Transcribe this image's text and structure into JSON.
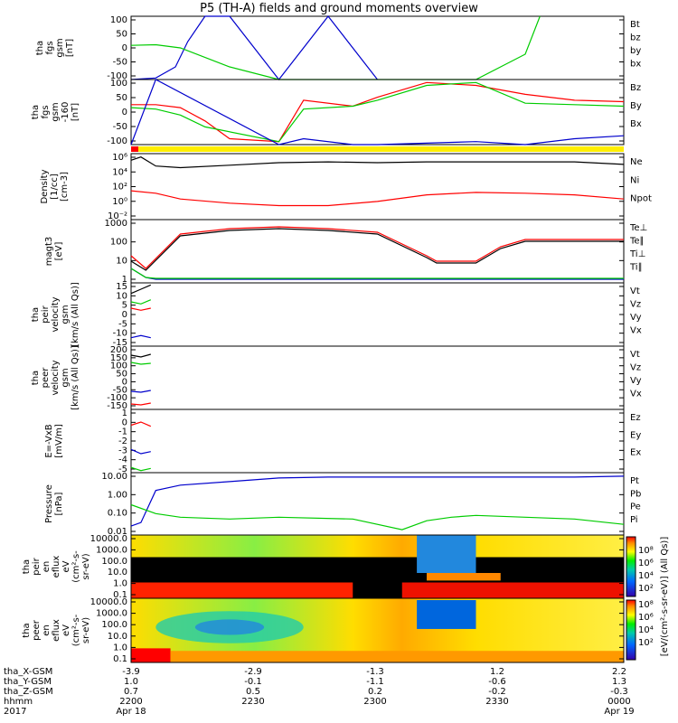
{
  "title": "P5 (TH-A) fields and ground moments overview",
  "colors": {
    "black": "#000000",
    "red": "#ff0000",
    "green": "#00cc00",
    "blue": "#0000cc",
    "yellow": "#ffee00"
  },
  "panels": [
    {
      "id": "fgs",
      "ylabel": [
        "tha",
        "fgs",
        "gsm",
        "[nT]"
      ],
      "ticks": [
        "100",
        "50",
        "0",
        "-50",
        "-100"
      ],
      "legend": [
        {
          "text": "Bt",
          "color": "black"
        },
        {
          "text": "bz",
          "color": "red"
        },
        {
          "text": "by",
          "color": "green"
        },
        {
          "text": "bx",
          "color": "blue"
        }
      ]
    },
    {
      "id": "fgs2",
      "ylabel": [
        "tha",
        "fgs",
        "gsm",
        "-160",
        "[nT]"
      ],
      "ticks": [
        "100",
        "50",
        "0",
        "-50",
        "-100"
      ],
      "legend": [
        {
          "text": "Bz",
          "color": "red"
        },
        {
          "text": "By",
          "color": "green"
        },
        {
          "text": "Bx",
          "color": "blue"
        }
      ]
    },
    {
      "id": "density",
      "ylabel": [
        "Density",
        "[1/cc]",
        "[cm-3]"
      ],
      "ticks": [
        "10⁶",
        "10⁴",
        "10²",
        "10⁰",
        "10⁻²"
      ],
      "legend": [
        {
          "text": "Ne",
          "color": "red"
        },
        {
          "text": "Ni",
          "color": "black"
        },
        {
          "text": "Npot",
          "color": "blue"
        }
      ]
    },
    {
      "id": "temp",
      "ylabel": [
        "magt3",
        "[eV]"
      ],
      "ticks": [
        "1000",
        "100",
        "10",
        "1"
      ],
      "legend": [
        {
          "text": "Te⊥",
          "color": "red"
        },
        {
          "text": "Te∥",
          "color": "black"
        },
        {
          "text": "Ti⊥",
          "color": "blue"
        },
        {
          "text": "Ti∥",
          "color": "green"
        }
      ]
    },
    {
      "id": "peir",
      "ylabel": [
        "tha",
        "peir",
        "velocity",
        "gsm",
        "[km/s (All Qs)]"
      ],
      "ticks": [
        "15",
        "10",
        "5",
        "0",
        "-5",
        "-10",
        "-15"
      ],
      "legend": [
        {
          "text": "Vt",
          "color": "black"
        },
        {
          "text": "Vz",
          "color": "red"
        },
        {
          "text": "Vy",
          "color": "green"
        },
        {
          "text": "Vx",
          "color": "blue"
        }
      ]
    },
    {
      "id": "peer",
      "ylabel": [
        "tha",
        "peer",
        "velocity",
        "gsm",
        "[km/s (All Qs)]"
      ],
      "ticks": [
        "200",
        "150",
        "100",
        "50",
        "0",
        "-50",
        "-100",
        "-150"
      ],
      "legend": [
        {
          "text": "Vt",
          "color": "black"
        },
        {
          "text": "Vz",
          "color": "red"
        },
        {
          "text": "Vy",
          "color": "green"
        },
        {
          "text": "Vx",
          "color": "blue"
        }
      ]
    },
    {
      "id": "efield",
      "ylabel": [
        "E=-VxB",
        "[mV/m]"
      ],
      "ticks": [
        "1",
        "0",
        "-1",
        "-2",
        "-3",
        "-4",
        "-5"
      ],
      "legend": [
        {
          "text": "Ez",
          "color": "red"
        },
        {
          "text": "Ey",
          "color": "green"
        },
        {
          "text": "Ex",
          "color": "blue"
        }
      ]
    },
    {
      "id": "pressure",
      "ylabel": [
        "Pressure",
        "[nPa]"
      ],
      "ticks": [
        "10.00",
        "1.00",
        "0.10",
        "0.01"
      ],
      "legend": [
        {
          "text": "Pt",
          "color": "black"
        },
        {
          "text": "Pb",
          "color": "red"
        },
        {
          "text": "Pe",
          "color": "green"
        },
        {
          "text": "Pi",
          "color": "blue"
        }
      ]
    },
    {
      "id": "ispec",
      "ylabel": [
        "tha",
        "peir",
        "en",
        "eflux",
        "eV",
        "(cm²-s-",
        "sr-eV)"
      ],
      "ticks": [
        "10000.0",
        "1000.0",
        "100.0",
        "10.0",
        "1.0",
        "0.1"
      ],
      "legend": []
    },
    {
      "id": "espec",
      "ylabel": [
        "tha",
        "peer",
        "en",
        "eflux",
        "eV",
        "(cm²-s-",
        "sr-eV)"
      ],
      "ticks": [
        "10000.0",
        "1000.0",
        "100.0",
        "10.0",
        "1.0",
        "0.1"
      ],
      "legend": []
    }
  ],
  "colorbar": {
    "label": "[eV/(cm²-s-sr-eV)] (All Qs)]",
    "ticks1": [
      "10⁸",
      "10⁶",
      "10⁴",
      "10²"
    ],
    "ticks2": [
      "10⁸",
      "10⁶",
      "10⁴",
      "10²"
    ]
  },
  "xaxis": {
    "rows": [
      {
        "label": "tha_X-GSM",
        "values": [
          "-3.9",
          "-2.9",
          "-1.3",
          "1.2",
          "2.2"
        ]
      },
      {
        "label": "tha_Y-GSM",
        "values": [
          "1.0",
          "-0.1",
          "-1.1",
          "-0.6",
          "1.3"
        ]
      },
      {
        "label": "tha_Z-GSM",
        "values": [
          "0.7",
          "0.5",
          "0.2",
          "-0.2",
          "-0.3"
        ]
      },
      {
        "label": "hhmm",
        "values": [
          "2200",
          "2230",
          "2300",
          "2330",
          "0000"
        ]
      },
      {
        "label": "2017",
        "values": [
          "Apr 18",
          "",
          "",
          "",
          "Apr 19"
        ]
      }
    ]
  },
  "chart_data": [
    {
      "type": "line",
      "title": "tha fgs gsm",
      "ylim": [
        -100,
        100
      ],
      "series": [
        {
          "name": "bx",
          "color": "blue",
          "x": [
            0,
            0.05,
            0.09,
            0.115,
            0.15,
            0.2,
            0.3,
            0.4,
            0.5
          ],
          "y": [
            -100,
            -95,
            -60,
            20,
            100,
            100,
            -100,
            100,
            -100
          ]
        },
        {
          "name": "by",
          "color": "green",
          "x": [
            0,
            0.05,
            0.1,
            0.2,
            0.3,
            0.7,
            0.8,
            0.83
          ],
          "y": [
            8,
            10,
            0,
            -60,
            -100,
            -100,
            -20,
            100
          ]
        }
      ]
    },
    {
      "type": "line",
      "title": "tha fgs gsm -160",
      "ylim": [
        -120,
        100
      ],
      "series": [
        {
          "name": "Bz",
          "color": "red",
          "x": [
            0,
            0.05,
            0.1,
            0.15,
            0.2,
            0.3,
            0.35,
            0.45,
            0.5,
            0.6,
            0.7,
            0.8,
            0.9,
            1.0
          ],
          "y": [
            15,
            15,
            5,
            -40,
            -100,
            -110,
            30,
            10,
            40,
            90,
            80,
            50,
            30,
            25
          ]
        },
        {
          "name": "By",
          "color": "green",
          "x": [
            0,
            0.05,
            0.1,
            0.15,
            0.3,
            0.35,
            0.45,
            0.5,
            0.6,
            0.7,
            0.8,
            0.9,
            1.0
          ],
          "y": [
            5,
            0,
            -20,
            -60,
            -110,
            0,
            10,
            30,
            80,
            90,
            20,
            15,
            10
          ]
        },
        {
          "name": "Bx",
          "color": "blue",
          "x": [
            0,
            0.05,
            0.3,
            0.35,
            0.45,
            0.5,
            0.7,
            0.8,
            0.9,
            1.0
          ],
          "y": [
            -120,
            100,
            -120,
            -100,
            -120,
            -120,
            -110,
            -120,
            -100,
            -90
          ]
        }
      ]
    },
    {
      "type": "line",
      "title": "Density",
      "ylim": [
        -2,
        6
      ],
      "log_y": true,
      "series": [
        {
          "name": "Ni",
          "color": "black",
          "x": [
            0,
            0.02,
            0.05,
            0.1,
            0.2,
            0.3,
            0.4,
            0.5,
            0.6,
            0.7,
            0.8,
            0.9,
            1.0
          ],
          "y": [
            5.2,
            5.6,
            4.5,
            4.3,
            4.6,
            4.9,
            5.0,
            4.9,
            5.0,
            5.0,
            5.0,
            5.0,
            4.7
          ]
        },
        {
          "name": "Ne",
          "color": "red",
          "x": [
            0,
            0.05,
            0.1,
            0.2,
            0.3,
            0.4,
            0.5,
            0.6,
            0.7,
            0.8,
            0.9,
            1.0
          ],
          "y": [
            1.5,
            1.2,
            0.5,
            0.0,
            -0.3,
            -0.3,
            0.2,
            1.0,
            1.3,
            1.2,
            1.0,
            0.5
          ]
        }
      ]
    },
    {
      "type": "line",
      "title": "magt3",
      "ylim": [
        0,
        3.5
      ],
      "log_y": true,
      "series": [
        {
          "name": "Te⊥",
          "color": "red",
          "x": [
            0,
            0.03,
            0.1,
            0.2,
            0.3,
            0.4,
            0.5,
            0.6,
            0.62,
            0.7,
            0.75,
            0.8,
            1.0
          ],
          "y": [
            1.5,
            0.8,
            2.7,
            3.0,
            3.1,
            3.0,
            2.8,
            1.5,
            1.2,
            1.2,
            2.0,
            2.4,
            2.4
          ]
        },
        {
          "name": "Te∥",
          "color": "black",
          "x": [
            0,
            0.03,
            0.1,
            0.2,
            0.3,
            0.4,
            0.5,
            0.6,
            0.62,
            0.7,
            0.75,
            0.8,
            1.0
          ],
          "y": [
            1.2,
            0.7,
            2.6,
            2.9,
            3.0,
            2.9,
            2.7,
            1.4,
            1.1,
            1.1,
            1.9,
            2.3,
            2.3
          ]
        },
        {
          "name": "Ti⊥",
          "color": "blue",
          "x": [
            0,
            0.03,
            0.05,
            1.0
          ],
          "y": [
            0.8,
            0.3,
            0.2,
            0.2
          ]
        },
        {
          "name": "Ti∥",
          "color": "green",
          "x": [
            0,
            0.03,
            0.05,
            1.0
          ],
          "y": [
            0.8,
            0.3,
            0.25,
            0.25
          ]
        }
      ]
    },
    {
      "type": "line",
      "title": "peir velocity",
      "ylim": [
        -15,
        15
      ],
      "series": [
        {
          "name": "Vt",
          "color": "black",
          "x": [
            0,
            0.02,
            0.04
          ],
          "y": [
            10,
            12,
            14
          ]
        },
        {
          "name": "Vz",
          "color": "red",
          "x": [
            0,
            0.02,
            0.04
          ],
          "y": [
            3,
            2,
            3
          ]
        },
        {
          "name": "Vy",
          "color": "green",
          "x": [
            0,
            0.02,
            0.04
          ],
          "y": [
            6,
            5,
            7
          ]
        },
        {
          "name": "Vx",
          "color": "blue",
          "x": [
            0,
            0.02,
            0.04
          ],
          "y": [
            -11,
            -10,
            -11
          ]
        }
      ]
    },
    {
      "type": "line",
      "title": "peer velocity",
      "ylim": [
        -150,
        200
      ],
      "series": [
        {
          "name": "Vt",
          "color": "black",
          "x": [
            0,
            0.02,
            0.04
          ],
          "y": [
            150,
            140,
            155
          ]
        },
        {
          "name": "Vz",
          "color": "red",
          "x": [
            0,
            0.02,
            0.04
          ],
          "y": [
            -120,
            -125,
            -115
          ]
        },
        {
          "name": "Vy",
          "color": "green",
          "x": [
            0,
            0.02,
            0.04
          ],
          "y": [
            110,
            100,
            105
          ]
        },
        {
          "name": "Vx",
          "color": "blue",
          "x": [
            0,
            0.02,
            0.04
          ],
          "y": [
            -50,
            -55,
            -45
          ]
        }
      ]
    },
    {
      "type": "line",
      "title": "E=-VxB",
      "ylim": [
        -5,
        1
      ],
      "series": [
        {
          "name": "Ez",
          "color": "red",
          "x": [
            0,
            0.02,
            0.04
          ],
          "y": [
            -0.5,
            -0.2,
            -0.6
          ]
        },
        {
          "name": "Ey",
          "color": "green",
          "x": [
            0,
            0.02,
            0.04
          ],
          "y": [
            -4.5,
            -4.8,
            -4.6
          ]
        },
        {
          "name": "Ex",
          "color": "blue",
          "x": [
            0,
            0.02,
            0.04
          ],
          "y": [
            -2.8,
            -3.2,
            -3.0
          ]
        }
      ]
    },
    {
      "type": "line",
      "title": "Pressure",
      "ylim": [
        -2.2,
        1.3
      ],
      "log_y": true,
      "series": [
        {
          "name": "Pi",
          "color": "blue",
          "x": [
            0,
            0.02,
            0.05,
            0.1,
            0.2,
            0.3,
            0.4,
            0.5,
            0.6,
            0.7,
            0.8,
            0.9,
            1.0
          ],
          "y": [
            -1.7,
            -1.5,
            0.3,
            0.6,
            0.8,
            1.0,
            1.05,
            1.05,
            1.05,
            1.05,
            1.05,
            1.05,
            1.1
          ]
        },
        {
          "name": "Pe",
          "color": "green",
          "x": [
            0,
            0.05,
            0.1,
            0.2,
            0.3,
            0.45,
            0.55,
            0.6,
            0.65,
            0.7,
            0.8,
            0.9,
            1.0
          ],
          "y": [
            -0.5,
            -1.0,
            -1.2,
            -1.3,
            -1.2,
            -1.3,
            -1.9,
            -1.4,
            -1.2,
            -1.1,
            -1.2,
            -1.3,
            -1.6
          ]
        }
      ]
    },
    {
      "type": "heatmap",
      "title": "tha peir en eflux"
    },
    {
      "type": "heatmap",
      "title": "tha peer en eflux"
    }
  ]
}
